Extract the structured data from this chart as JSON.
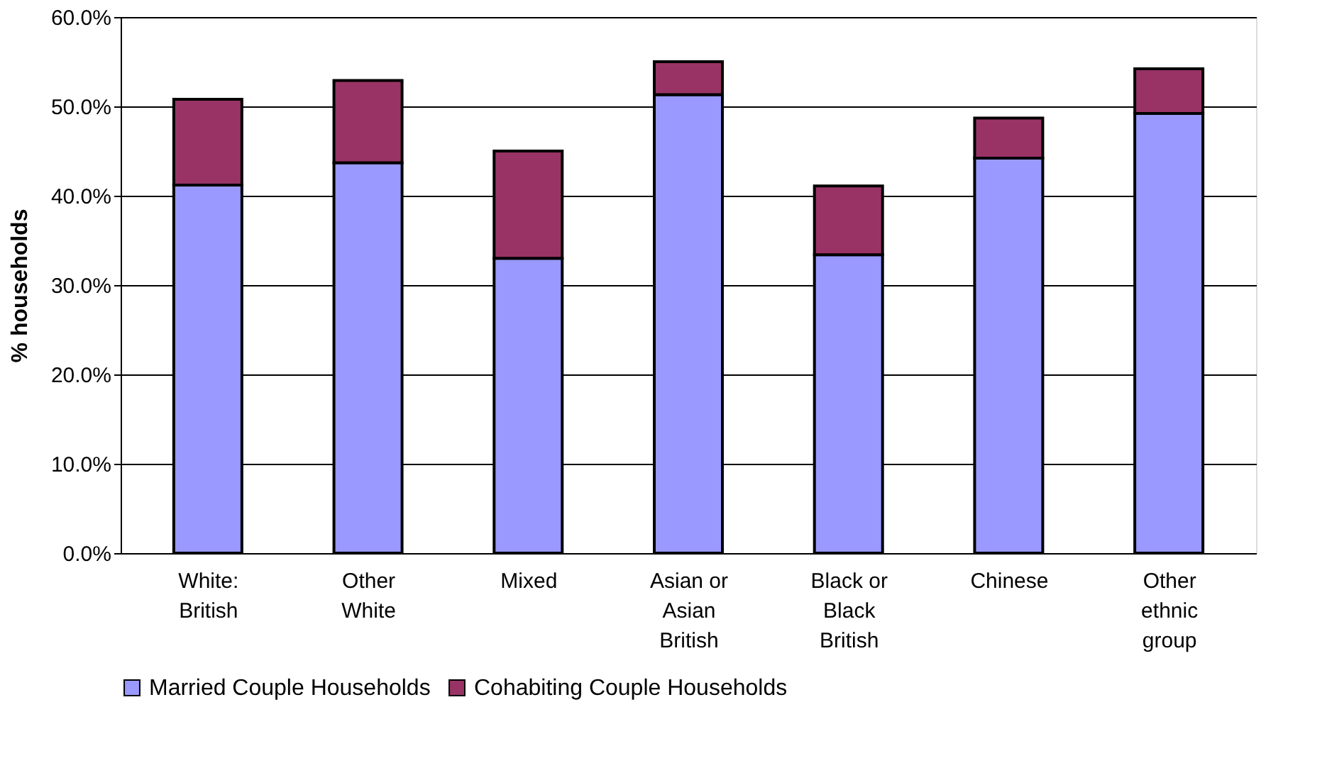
{
  "chart_data": {
    "type": "bar",
    "stacked": true,
    "ylabel": "% households",
    "categories": [
      "White:\nBritish",
      "Other\nWhite",
      "Mixed",
      "Asian or\nAsian\nBritish",
      "Black or\nBlack\nBritish",
      "Chinese",
      "Other\nethnic\ngroup"
    ],
    "series": [
      {
        "name": "Married Couple Households",
        "color": "#9999ff",
        "values": [
          41.2,
          43.7,
          33.0,
          51.3,
          33.4,
          44.2,
          49.2
        ]
      },
      {
        "name": "Cohabiting Couple Households",
        "color": "#993366",
        "values": [
          9.6,
          9.2,
          12.0,
          3.7,
          7.7,
          4.5,
          5.0
        ]
      }
    ],
    "ylim": [
      0,
      60
    ],
    "yticks": [
      {
        "value": 0,
        "label": "0.0%"
      },
      {
        "value": 10,
        "label": "10.0%"
      },
      {
        "value": 20,
        "label": "20.0%"
      },
      {
        "value": 30,
        "label": "30.0%"
      },
      {
        "value": 40,
        "label": "40.0%"
      },
      {
        "value": 50,
        "label": "50.0%"
      },
      {
        "value": 60,
        "label": "60.0%"
      }
    ],
    "grid": "y",
    "legend": "bottom"
  }
}
